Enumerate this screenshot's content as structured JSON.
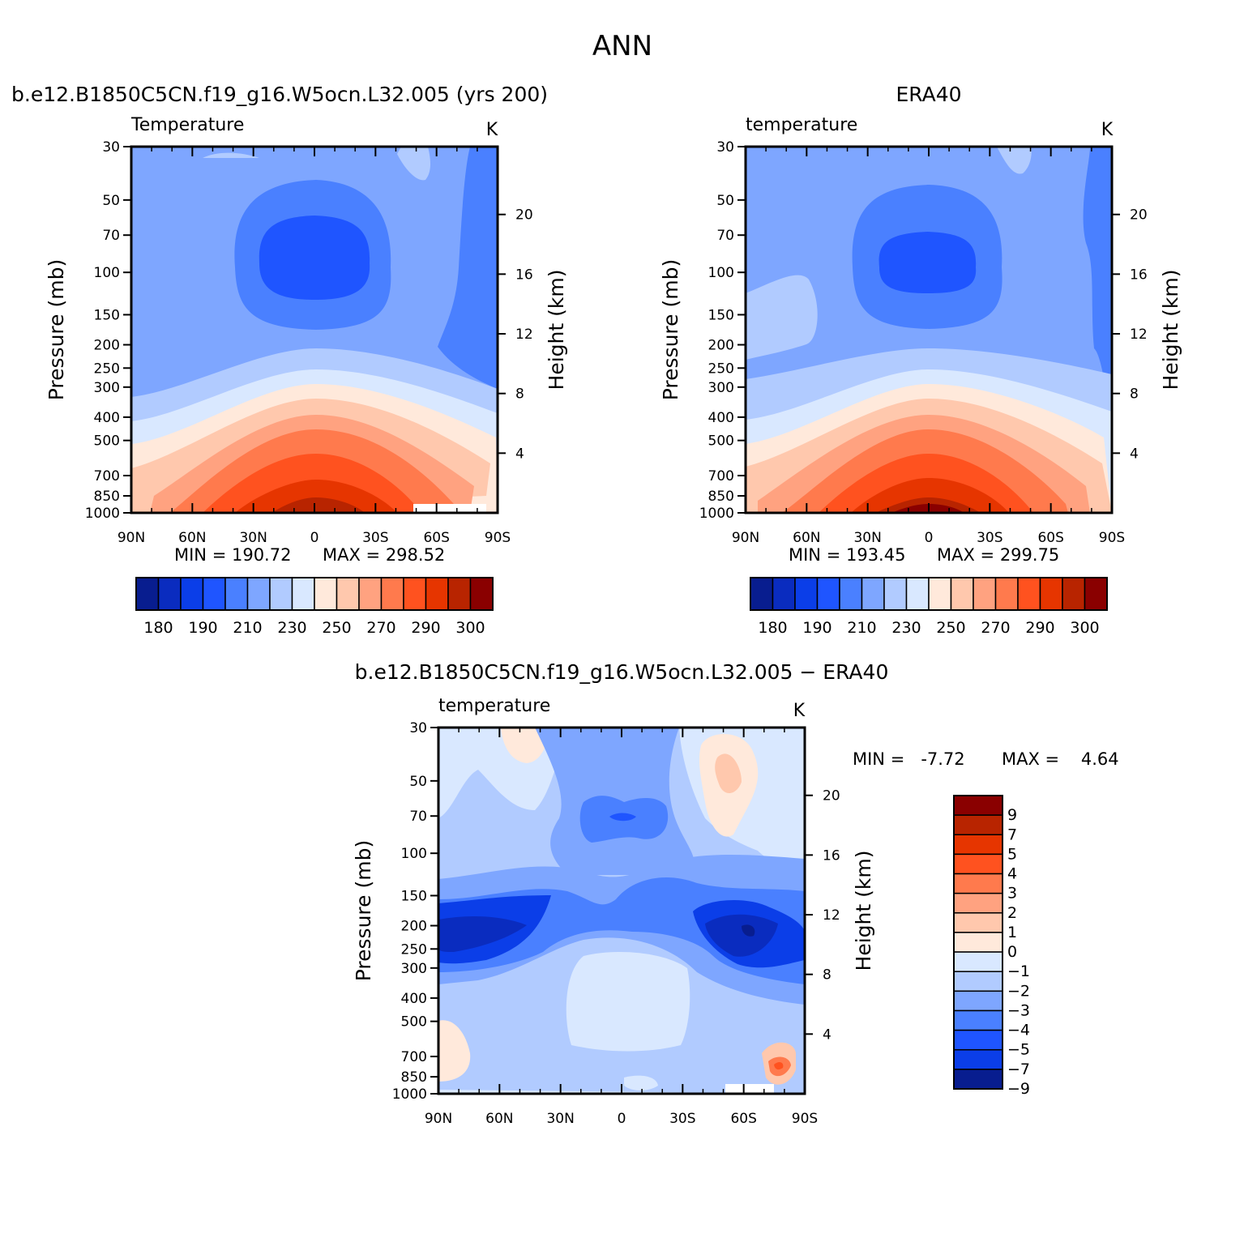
{
  "figure": {
    "title": "ANN",
    "model_title": "b.e12.B1850C5CN.f19_g16.W5ocn.L32.005 (yrs 200)",
    "obs_title": "ERA40",
    "diff_title": "b.e12.B1850C5CN.f19_g16.W5ocn.L32.005 − ERA40"
  },
  "chart_data": [
    {
      "id": "model",
      "type": "heatmap",
      "subtitle": "Temperature",
      "units": "K",
      "xlabel": "",
      "ylabel": "Pressure (mb)",
      "y2label": "Height (km)",
      "xticks": [
        "90N",
        "60N",
        "30N",
        "0",
        "30S",
        "60S",
        "90S"
      ],
      "yticks": [
        "30",
        "50",
        "70",
        "100",
        "150",
        "200",
        "250",
        "300",
        "400",
        "500",
        "700",
        "850",
        "1000"
      ],
      "y2ticks": [
        "20",
        "16",
        "12",
        "8",
        "4"
      ],
      "min_label": "MIN =  190.72",
      "max_label": "MAX =  298.52",
      "levels": [
        180,
        190,
        200,
        210,
        220,
        230,
        240,
        250,
        260,
        270,
        280,
        290,
        300
      ],
      "colorbar_labels": [
        "180",
        "190",
        "210",
        "230",
        "250",
        "270",
        "290",
        "300"
      ],
      "field_description": "zonal-mean temperature vs latitude (90N to 90S) and pressure (30 to 1000 mb)"
    },
    {
      "id": "obs",
      "type": "heatmap",
      "subtitle": "temperature",
      "units": "K",
      "xlabel": "",
      "ylabel": "Pressure (mb)",
      "y2label": "Height (km)",
      "xticks": [
        "90N",
        "60N",
        "30N",
        "0",
        "30S",
        "60S",
        "90S"
      ],
      "yticks": [
        "30",
        "50",
        "70",
        "100",
        "150",
        "200",
        "250",
        "300",
        "400",
        "500",
        "700",
        "850",
        "1000"
      ],
      "y2ticks": [
        "20",
        "16",
        "12",
        "8",
        "4"
      ],
      "min_label": "MIN =  193.45",
      "max_label": "MAX =  299.75",
      "levels": [
        180,
        190,
        200,
        210,
        220,
        230,
        240,
        250,
        260,
        270,
        280,
        290,
        300
      ],
      "colorbar_labels": [
        "180",
        "190",
        "210",
        "230",
        "250",
        "270",
        "290",
        "300"
      ],
      "field_description": "ERA40 zonal-mean temperature"
    },
    {
      "id": "diff",
      "type": "heatmap",
      "subtitle": "temperature",
      "units": "K",
      "xlabel": "",
      "ylabel": "Pressure (mb)",
      "y2label": "Height (km)",
      "xticks": [
        "90N",
        "60N",
        "30N",
        "0",
        "30S",
        "60S",
        "90S"
      ],
      "yticks": [
        "30",
        "50",
        "70",
        "100",
        "150",
        "200",
        "250",
        "300",
        "400",
        "500",
        "700",
        "850",
        "1000"
      ],
      "y2ticks": [
        "20",
        "16",
        "12",
        "8",
        "4"
      ],
      "min_label": "MIN =   -7.72",
      "max_label": "MAX =    4.64",
      "levels": [
        -9,
        -7,
        -5,
        -4,
        -3,
        -2,
        -1,
        0,
        1,
        2,
        3,
        4,
        5,
        7,
        9
      ],
      "colorbar_labels": [
        "9",
        "7",
        "5",
        "4",
        "3",
        "2",
        "1",
        "0",
        "−1",
        "−2",
        "−3",
        "−4",
        "−5",
        "−7",
        "−9"
      ],
      "field_description": "model minus ERA40 temperature difference"
    }
  ],
  "colors": {
    "temp_scale": [
      "#081d8f",
      "#0a2cbf",
      "#0b3ee8",
      "#1f55ff",
      "#4a80ff",
      "#7ea6ff",
      "#b1cbff",
      "#d9e8ff",
      "#ffe9db",
      "#ffc8ad",
      "#ffa280",
      "#ff7a4d",
      "#ff521f",
      "#e63500",
      "#b82400",
      "#8a0000"
    ],
    "diff_scale": [
      "#8a0000",
      "#b82400",
      "#e63500",
      "#ff521f",
      "#ff7a4d",
      "#ffa280",
      "#ffc8ad",
      "#ffe9db",
      "#d9e8ff",
      "#b1cbff",
      "#7ea6ff",
      "#4a80ff",
      "#1f55ff",
      "#0b3ee8",
      "#081d8f"
    ]
  }
}
